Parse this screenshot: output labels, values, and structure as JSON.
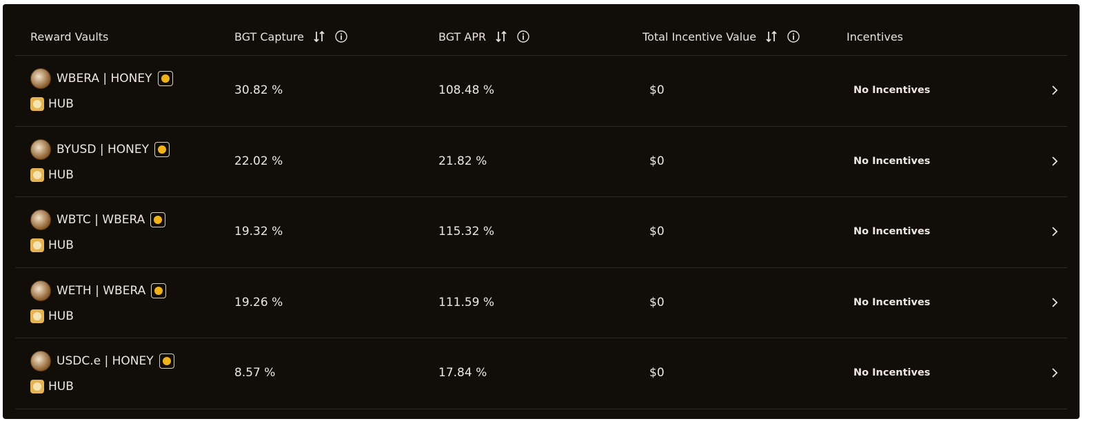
{
  "table": {
    "columns": [
      "Reward Vaults",
      "BGT Capture",
      "BGT APR",
      "Total Incentive Value",
      "Incentives"
    ],
    "rows": [
      {
        "vault": "WBERA | HONEY",
        "protocol": "HUB",
        "bgt_capture": "30.82 %",
        "bgt_apr": "108.48 %",
        "incentive_value": "$0",
        "incentives": "No Incentives"
      },
      {
        "vault": "BYUSD | HONEY",
        "protocol": "HUB",
        "bgt_capture": "22.02 %",
        "bgt_apr": "21.82 %",
        "incentive_value": "$0",
        "incentives": "No Incentives"
      },
      {
        "vault": "WBTC | WBERA",
        "protocol": "HUB",
        "bgt_capture": "19.32 %",
        "bgt_apr": "115.32 %",
        "incentive_value": "$0",
        "incentives": "No Incentives"
      },
      {
        "vault": "WETH | WBERA",
        "protocol": "HUB",
        "bgt_capture": "19.26 %",
        "bgt_apr": "111.59 %",
        "incentive_value": "$0",
        "incentives": "No Incentives"
      },
      {
        "vault": "USDC.e | HONEY",
        "protocol": "HUB",
        "bgt_capture": "8.57 %",
        "bgt_apr": "17.84 %",
        "incentive_value": "$0",
        "incentives": "No Incentives"
      }
    ]
  }
}
